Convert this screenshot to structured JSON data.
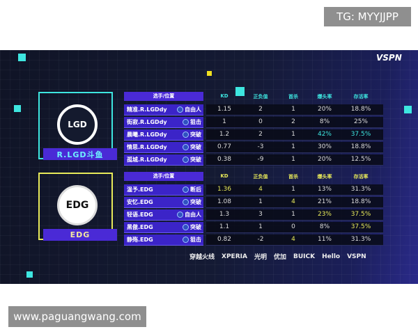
{
  "watermarks": {
    "top": "TG: MYYJJPP",
    "bottom": "www.paguangwang.com"
  },
  "broadcaster": "VSPN",
  "colors": {
    "lgd_accent": "#3ee6e0",
    "edg_accent": "#e8ea5a",
    "label_bg": "#4a2ad6"
  },
  "teams": [
    {
      "name": "R.LGD斗鱼",
      "logo_text": "LGD",
      "headers": [
        "选手/位置",
        "KD",
        "正负值",
        "首杀",
        "爆头率",
        "存活率"
      ],
      "players": [
        {
          "name": "精准.R.LGDdy",
          "role": "自由人",
          "kd": "1.15",
          "pm": "2",
          "fk": "1",
          "hs": "20%",
          "sr": "18.8%",
          "hl": []
        },
        {
          "name": "街寂.R.LGDdy",
          "role": "狙击",
          "kd": "1",
          "pm": "0",
          "fk": "2",
          "hs": "8%",
          "sr": "25%",
          "hl": []
        },
        {
          "name": "晨曦.R.LGDdy",
          "role": "突破",
          "kd": "1.2",
          "pm": "2",
          "fk": "1",
          "hs": "42%",
          "sr": "37.5%",
          "hl": [
            "hs",
            "sr"
          ]
        },
        {
          "name": "情思.R.LGDdy",
          "role": "突破",
          "kd": "0.77",
          "pm": "-3",
          "fk": "1",
          "hs": "30%",
          "sr": "18.8%",
          "hl": []
        },
        {
          "name": "孤城.R.LGDdy",
          "role": "突破",
          "kd": "0.38",
          "pm": "-9",
          "fk": "1",
          "hs": "20%",
          "sr": "12.5%",
          "hl": []
        }
      ]
    },
    {
      "name": "EDG",
      "logo_text": "EDG",
      "headers": [
        "选手/位置",
        "KD",
        "正负值",
        "首杀",
        "爆头率",
        "存活率"
      ],
      "players": [
        {
          "name": "温予.EDG",
          "role": "断后",
          "kd": "1.36",
          "pm": "4",
          "fk": "1",
          "hs": "13%",
          "sr": "31.3%",
          "hl": [
            "kd",
            "pm"
          ]
        },
        {
          "name": "安忆.EDG",
          "role": "突破",
          "kd": "1.08",
          "pm": "1",
          "fk": "4",
          "hs": "21%",
          "sr": "18.8%",
          "hl": [
            "fk"
          ]
        },
        {
          "name": "轻语.EDG",
          "role": "自由人",
          "kd": "1.3",
          "pm": "3",
          "fk": "1",
          "hs": "23%",
          "sr": "37.5%",
          "hl": [
            "hs",
            "sr"
          ]
        },
        {
          "name": "黑傲.EDG",
          "role": "突破",
          "kd": "1.1",
          "pm": "1",
          "fk": "0",
          "hs": "8%",
          "sr": "37.5%",
          "hl": [
            "sr"
          ]
        },
        {
          "name": "静殇.EDG",
          "role": "狙击",
          "kd": "0.82",
          "pm": "-2",
          "fk": "4",
          "hs": "11%",
          "sr": "31.3%",
          "hl": [
            "fk"
          ]
        }
      ]
    }
  ],
  "sponsors": [
    "穿越火线",
    "XPERIA",
    "光明",
    "优加",
    "BUICK",
    "Hello",
    "VSPN"
  ]
}
